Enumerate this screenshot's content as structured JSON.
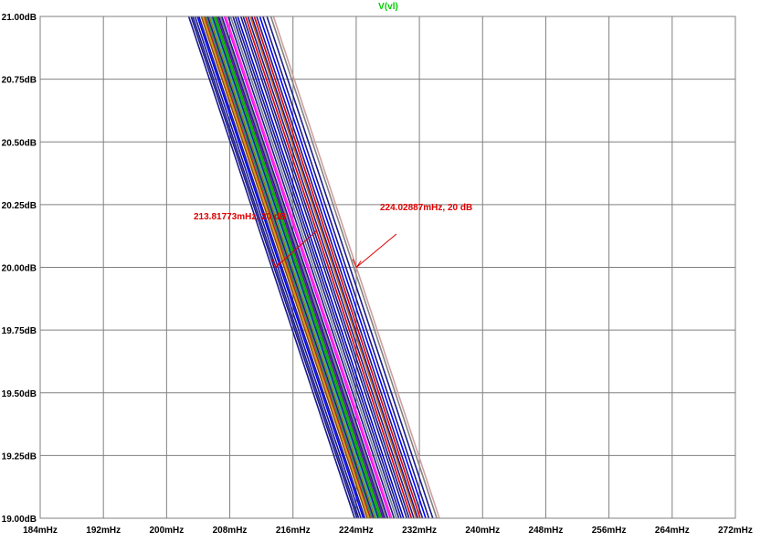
{
  "chart_data": {
    "type": "line",
    "title": "V(vl)",
    "title_color": "#00cc00",
    "xlabel": "",
    "ylabel": "",
    "xlim": [
      184,
      272
    ],
    "ylim": [
      19.0,
      21.0
    ],
    "x_unit": "mHz",
    "y_unit": "dB",
    "grid": true,
    "x_ticks": [
      "184mHz",
      "192mHz",
      "200mHz",
      "208mHz",
      "216mHz",
      "224mHz",
      "232mHz",
      "240mHz",
      "248mHz",
      "256mHz",
      "264mHz",
      "272mHz"
    ],
    "y_ticks": [
      "21.00dB",
      "20.75dB",
      "20.50dB",
      "20.25dB",
      "20.00dB",
      "19.75dB",
      "19.50dB",
      "19.25dB",
      "19.00dB"
    ],
    "trace_slope_mhz_per_db": -10.5,
    "series": [
      {
        "color": "#1a1a8c",
        "x_at_20db": 213.3
      },
      {
        "color": "#1a1a8c",
        "x_at_20db": 213.6
      },
      {
        "color": "#1a1a8c",
        "x_at_20db": 213.82
      },
      {
        "color": "#1a1a8c",
        "x_at_20db": 214.1
      },
      {
        "color": "#0000ff",
        "x_at_20db": 214.4
      },
      {
        "color": "#1a1a8c",
        "x_at_20db": 214.6
      },
      {
        "color": "#8b4513",
        "x_at_20db": 214.9
      },
      {
        "color": "#d4a000",
        "x_at_20db": 215.1
      },
      {
        "color": "#b22222",
        "x_at_20db": 215.3
      },
      {
        "color": "#2e8b57",
        "x_at_20db": 215.5
      },
      {
        "color": "#1a1a8c",
        "x_at_20db": 215.7
      },
      {
        "color": "#808000",
        "x_at_20db": 215.9
      },
      {
        "color": "#20b2aa",
        "x_at_20db": 216.1
      },
      {
        "color": "#1a1a8c",
        "x_at_20db": 216.3
      },
      {
        "color": "#00aa00",
        "x_at_20db": 216.5
      },
      {
        "color": "#00aa00",
        "x_at_20db": 216.7
      },
      {
        "color": "#6a0dad",
        "x_at_20db": 216.9
      },
      {
        "color": "#1a1a8c",
        "x_at_20db": 217.1
      },
      {
        "color": "#808080",
        "x_at_20db": 217.3
      },
      {
        "color": "#1a1a8c",
        "x_at_20db": 217.5
      },
      {
        "color": "#ff00ff",
        "x_at_20db": 217.8
      },
      {
        "color": "#ff33cc",
        "x_at_20db": 218.0
      },
      {
        "color": "#1a1a8c",
        "x_at_20db": 218.3
      },
      {
        "color": "#708090",
        "x_at_20db": 218.6
      },
      {
        "color": "#1a1a8c",
        "x_at_20db": 218.9
      },
      {
        "color": "#1a1a8c",
        "x_at_20db": 219.2
      },
      {
        "color": "#0000cd",
        "x_at_20db": 219.5
      },
      {
        "color": "#1a1a8c",
        "x_at_20db": 219.9
      },
      {
        "color": "#1a1a8c",
        "x_at_20db": 220.2
      },
      {
        "color": "#dd0000",
        "x_at_20db": 220.5
      },
      {
        "color": "#1a1a8c",
        "x_at_20db": 220.8
      },
      {
        "color": "#d2691e",
        "x_at_20db": 221.1
      },
      {
        "color": "#1a1a8c",
        "x_at_20db": 221.3
      },
      {
        "color": "#dd0000",
        "x_at_20db": 221.6
      },
      {
        "color": "#1a1a8c",
        "x_at_20db": 221.9
      },
      {
        "color": "#0000ff",
        "x_at_20db": 222.3
      },
      {
        "color": "#1a1a8c",
        "x_at_20db": 222.7
      },
      {
        "color": "#1a1a8c",
        "x_at_20db": 223.2
      },
      {
        "color": "#808080",
        "x_at_20db": 223.7
      },
      {
        "color": "#d0a0a0",
        "x_at_20db": 224.03
      }
    ],
    "annotations": [
      {
        "text": "213.81773mHz, 20 dB",
        "x": 213.81773,
        "y": 20.0,
        "color": "#dd0000"
      },
      {
        "text": "224.02887mHz, 20 dB",
        "x": 224.02887,
        "y": 20.0,
        "color": "#dd0000"
      }
    ]
  }
}
